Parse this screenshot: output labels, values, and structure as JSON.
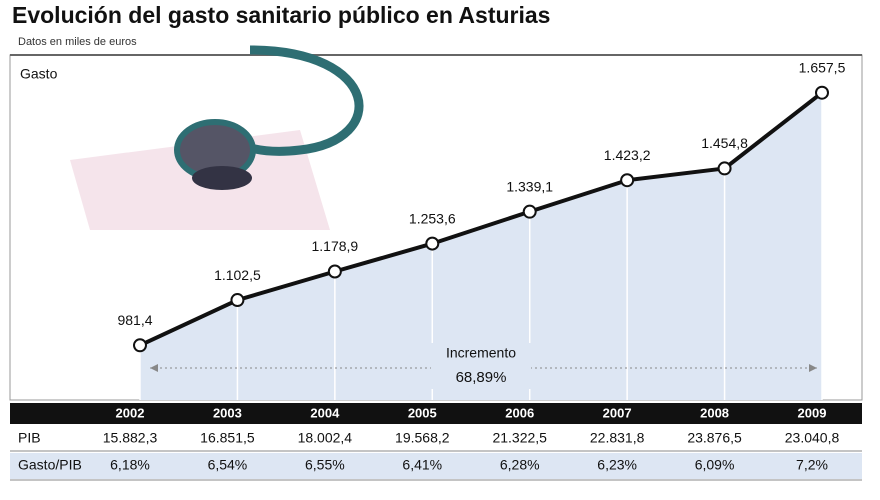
{
  "chart_data": {
    "type": "line",
    "title": "Evolución del gasto sanitario público en Asturias",
    "subtitle": "Datos en miles de euros",
    "y_label": "Gasto",
    "categories": [
      "2002",
      "2003",
      "2004",
      "2005",
      "2006",
      "2007",
      "2008",
      "2009"
    ],
    "values": [
      981.4,
      1102.5,
      1178.9,
      1253.6,
      1339.1,
      1423.2,
      1454.8,
      1657.5
    ],
    "value_labels": [
      "981,4",
      "1.102,5",
      "1.178,9",
      "1.253,6",
      "1.339,1",
      "1.423,2",
      "1.454,8",
      "1.657,5"
    ],
    "color": "#111111",
    "area_color": "#dde6f3",
    "ylim": [
      835,
      1745
    ],
    "annotation": {
      "label": "Incremento",
      "value": "68,89%"
    }
  },
  "table": {
    "rows": [
      {
        "label": "PIB",
        "cells": [
          "15.882,3",
          "16.851,5",
          "18.002,4",
          "19.568,2",
          "21.322,5",
          "22.831,8",
          "23.876,5",
          "23.040,8"
        ]
      },
      {
        "label": "Gasto/PIB",
        "cells": [
          "6,18%",
          "6,54%",
          "6,55%",
          "6,41%",
          "6,28%",
          "6,23%",
          "6,09%",
          "7,2%"
        ]
      }
    ]
  }
}
